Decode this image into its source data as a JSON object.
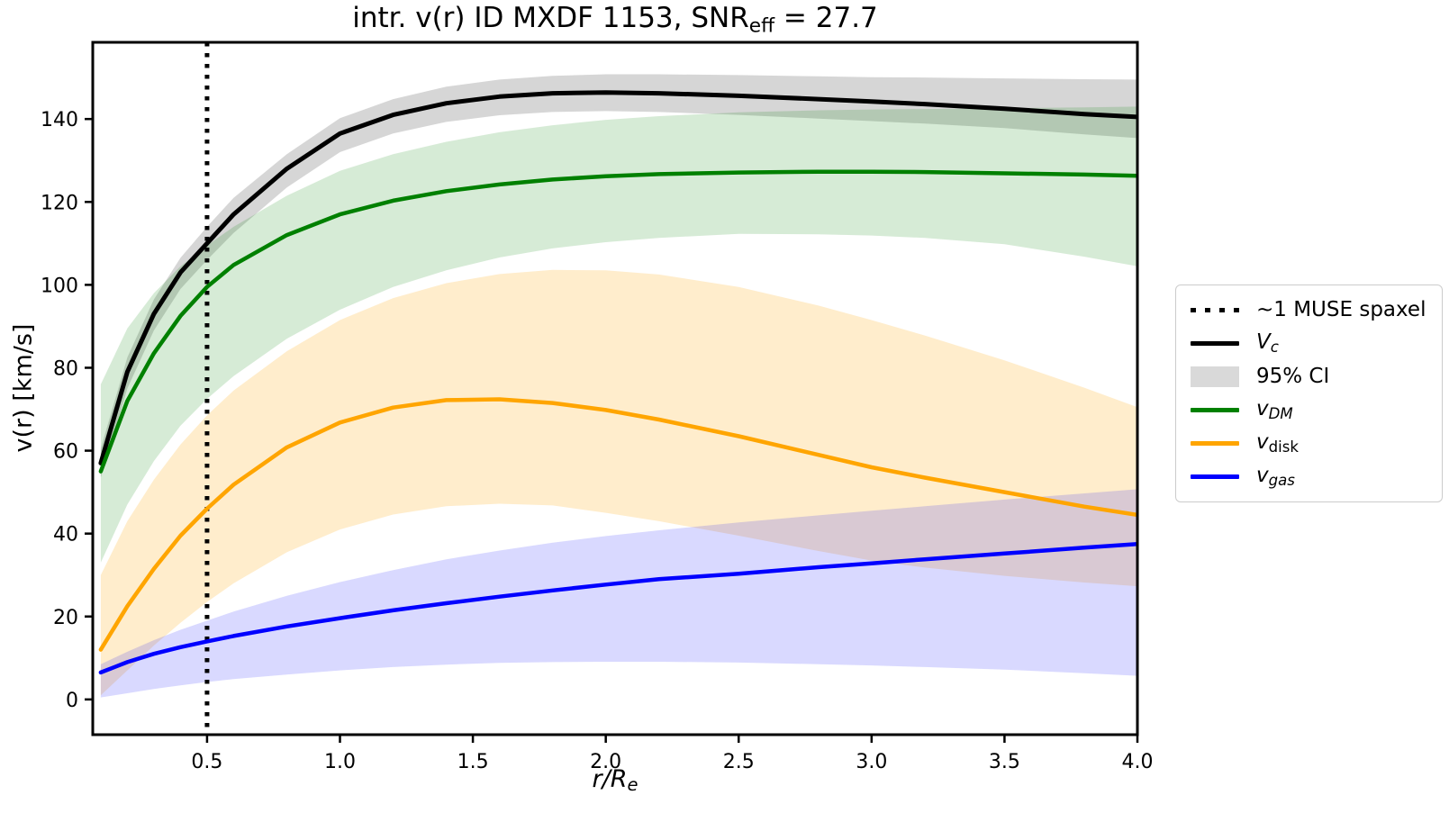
{
  "title": {
    "main": "intr. v(r) ID MXDF 1153, SNR",
    "sub": "eff",
    "end": " = 27.7"
  },
  "axes": {
    "ylabel": "v(r) [km/s]",
    "xlabel_main": "r/R",
    "xlabel_sub": "e",
    "xtick_labels": [
      "0.5",
      "1.0",
      "1.5",
      "2.0",
      "2.5",
      "3.0",
      "3.5",
      "4.0"
    ],
    "ytick_labels": [
      "0",
      "20",
      "40",
      "60",
      "80",
      "100",
      "120",
      "140"
    ]
  },
  "legend": {
    "entries": [
      {
        "label": "~1 MUSE spaxel",
        "sample": "dotted-line",
        "color": "#000000"
      },
      {
        "label_main": "V",
        "label_sub": "c",
        "sample": "line",
        "color": "#000000"
      },
      {
        "label": "95% CI",
        "sample": "patch",
        "color": "#d9d9d9"
      },
      {
        "label_main": "v",
        "label_sub": "DM",
        "sample": "line",
        "color": "#008000"
      },
      {
        "label_main": "v",
        "label_sub": "disk",
        "sample": "line",
        "color": "#ffa500"
      },
      {
        "label_main": "v",
        "label_sub": "gas",
        "sample": "line",
        "color": "#0000ff"
      }
    ]
  },
  "chart_data": {
    "type": "line",
    "title": "intr. v(r) ID MXDF 1153, SNR_eff = 27.7",
    "xlabel": "r/R_e",
    "ylabel": "v(r) [km/s]",
    "xlim": [
      0.07,
      4.0
    ],
    "ylim": [
      -8.5,
      158.5
    ],
    "xticks": [
      0.5,
      1.0,
      1.5,
      2.0,
      2.5,
      3.0,
      3.5,
      4.0
    ],
    "yticks": [
      0,
      20,
      40,
      60,
      80,
      100,
      120,
      140
    ],
    "grid": false,
    "legend_position": "outside-right",
    "vline": {
      "x": 0.5,
      "style": "dotted",
      "color": "#000000",
      "label": "~1 MUSE spaxel"
    },
    "x": [
      0.1,
      0.2,
      0.3,
      0.4,
      0.5,
      0.6,
      0.8,
      1.0,
      1.2,
      1.4,
      1.6,
      1.8,
      2.0,
      2.2,
      2.5,
      2.8,
      3.0,
      3.2,
      3.5,
      3.8,
      4.0
    ],
    "series": [
      {
        "name": "V_c",
        "color": "#000000",
        "width": 5,
        "values": [
          57,
          79,
          93,
          103,
          110,
          117,
          128,
          136.5,
          141,
          143.8,
          145.4,
          146.2,
          146.4,
          146.2,
          145.6,
          144.8,
          144.2,
          143.6,
          142.5,
          141.2,
          140.5
        ],
        "band": {
          "name": "95% CI",
          "color": "rgba(128,128,128,0.32)",
          "lower": [
            53.5,
            75,
            89,
            99,
            106,
            112.5,
            123.5,
            132,
            136.5,
            139.3,
            140.9,
            141.7,
            141.9,
            141.7,
            141,
            140.1,
            139.5,
            138.9,
            137.8,
            136.3,
            135.4
          ],
          "upper": [
            60.5,
            82.5,
            96.5,
            106.5,
            114,
            121,
            131.5,
            140.2,
            144.8,
            147.8,
            149.5,
            150.4,
            150.8,
            150.8,
            150.6,
            150.3,
            150.1,
            150,
            149.8,
            149.6,
            149.5
          ]
        }
      },
      {
        "name": "v_DM",
        "color": "#008000",
        "width": 4.5,
        "values": [
          55,
          72,
          83.5,
          92.5,
          99.5,
          104.8,
          112,
          117,
          120.3,
          122.6,
          124.2,
          125.4,
          126.2,
          126.7,
          127.1,
          127.3,
          127.3,
          127.2,
          126.9,
          126.6,
          126.3
        ],
        "band": {
          "name": "v_DM CI",
          "color": "rgba(0,128,0,0.16)",
          "lower": [
            33,
            47,
            57.5,
            66,
            72.5,
            78,
            87,
            94,
            99.5,
            103.5,
            106.6,
            108.8,
            110.3,
            111.3,
            112.3,
            112.2,
            111.9,
            111.3,
            109.8,
            106.8,
            104.5
          ],
          "upper": [
            76,
            89.5,
            98,
            104.5,
            109.5,
            114,
            121.5,
            127.5,
            131.5,
            134.5,
            136.8,
            138.5,
            139.8,
            140.7,
            141.6,
            142.1,
            142.3,
            142.4,
            142.6,
            142.8,
            143
          ]
        }
      },
      {
        "name": "v_disk",
        "color": "#ffa500",
        "width": 4.5,
        "values": [
          12,
          22.5,
          31.5,
          39.5,
          46,
          51.8,
          60.8,
          66.8,
          70.4,
          72.2,
          72.4,
          71.5,
          69.8,
          67.5,
          63.5,
          59,
          56,
          53.5,
          50,
          46.5,
          44.5
        ],
        "band": {
          "name": "v_disk CI",
          "color": "rgba(255,165,0,0.20)",
          "lower": [
            1,
            7,
            13,
            18.5,
            23.5,
            28,
            35.5,
            41,
            44.6,
            46.6,
            47.2,
            46.8,
            45,
            43,
            39.5,
            35.8,
            33.5,
            31.8,
            29.8,
            28.2,
            27.3
          ],
          "upper": [
            30,
            43,
            53,
            61.5,
            68.5,
            74.5,
            84,
            91.5,
            96.8,
            100.4,
            102.6,
            103.6,
            103.5,
            102.5,
            99.5,
            95,
            91.5,
            87.8,
            81.8,
            75.2,
            70.5
          ]
        }
      },
      {
        "name": "v_gas",
        "color": "#0000ff",
        "width": 4.5,
        "values": [
          6.5,
          9,
          11,
          12.6,
          14,
          15.3,
          17.6,
          19.6,
          21.5,
          23.2,
          24.8,
          26.3,
          27.7,
          29,
          30.3,
          31.9,
          32.8,
          33.8,
          35.2,
          36.6,
          37.5
        ],
        "band": {
          "name": "v_gas CI",
          "color": "rgba(0,0,255,0.15)",
          "lower": [
            0.5,
            1.5,
            2.5,
            3.4,
            4.2,
            4.9,
            6,
            7,
            7.8,
            8.4,
            8.8,
            9,
            9.1,
            9.1,
            8.9,
            8.5,
            8.2,
            7.8,
            7.2,
            6.3,
            5.7
          ],
          "upper": [
            8.5,
            11.5,
            14.3,
            16.8,
            19,
            21.2,
            25,
            28.3,
            31.2,
            33.8,
            35.9,
            37.8,
            39.4,
            40.8,
            42.7,
            44.4,
            45.5,
            46.6,
            48.2,
            49.7,
            50.7
          ]
        }
      }
    ]
  }
}
